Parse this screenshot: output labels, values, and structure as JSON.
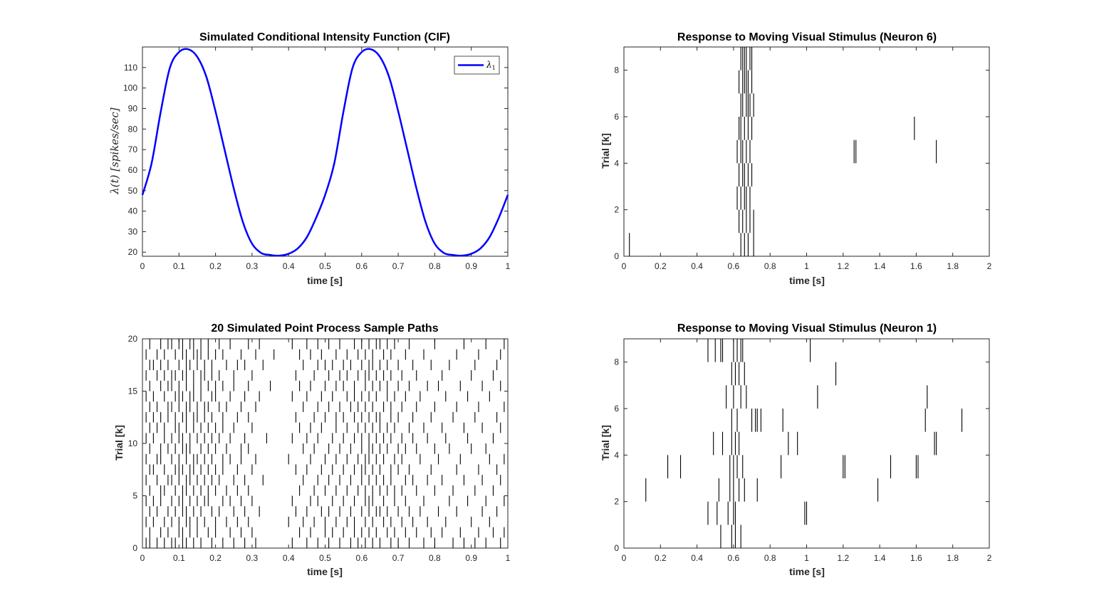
{
  "figure": {
    "axis_color": "#262626",
    "spike_color": "#000000",
    "cif_color": "#0000ff"
  },
  "chart_data": [
    {
      "id": "cif",
      "type": "line",
      "title": "Simulated Conditional Intensity Function (CIF)",
      "xlabel": "time [s]",
      "ylabel": "λ(t) [spikes/sec]",
      "xlim": [
        0,
        1
      ],
      "ylim": [
        18,
        120
      ],
      "xticks": [
        0,
        0.1,
        0.2,
        0.3,
        0.4,
        0.5,
        0.6,
        0.7,
        0.8,
        0.9,
        1
      ],
      "yticks": [
        20,
        30,
        40,
        50,
        60,
        70,
        80,
        90,
        100,
        110
      ],
      "legend": {
        "location": "top-right",
        "entries": [
          "λ1"
        ],
        "symbol": "λ",
        "subscript": "1"
      },
      "series": [
        {
          "name": "λ1",
          "color": "#0000ff",
          "x": [
            0,
            0.025,
            0.05,
            0.075,
            0.1,
            0.125,
            0.15,
            0.175,
            0.2,
            0.225,
            0.25,
            0.275,
            0.3,
            0.325,
            0.35,
            0.375,
            0.4,
            0.425,
            0.45,
            0.475,
            0.5,
            0.525,
            0.55,
            0.575,
            0.6,
            0.625,
            0.65,
            0.675,
            0.7,
            0.725,
            0.75,
            0.775,
            0.8,
            0.825,
            0.85,
            0.875,
            0.9,
            0.925,
            0.95,
            0.975,
            1
          ],
          "y": [
            47.9,
            63.3,
            88.4,
            109.8,
            117.5,
            118.9,
            115.2,
            105.4,
            88.6,
            69.8,
            51.0,
            34.6,
            24.1,
            19.6,
            18.6,
            18.3,
            19.2,
            21.8,
            27.3,
            36.6,
            47.9,
            63.3,
            88.4,
            109.8,
            117.5,
            118.9,
            115.2,
            105.4,
            88.6,
            69.8,
            51.0,
            34.6,
            24.1,
            19.6,
            18.6,
            18.3,
            19.2,
            21.8,
            27.3,
            36.6,
            47.9
          ]
        }
      ]
    },
    {
      "id": "raster20",
      "type": "scatter",
      "title": "20 Simulated Point Process Sample Paths",
      "xlabel": "time [s]",
      "ylabel": "Trial [k]",
      "xlim": [
        0,
        1
      ],
      "ylim": [
        0,
        20
      ],
      "xticks": [
        0,
        0.1,
        0.2,
        0.3,
        0.4,
        0.5,
        0.6,
        0.7,
        0.8,
        0.9,
        1
      ],
      "yticks": [
        0,
        5,
        10,
        15,
        20
      ],
      "trials": [
        [
          0.01,
          0.02,
          0.04,
          0.06,
          0.08,
          0.09,
          0.11,
          0.12,
          0.14,
          0.16,
          0.19,
          0.22,
          0.25,
          0.28,
          0.31,
          0.41,
          0.45,
          0.48,
          0.51,
          0.54,
          0.57,
          0.59,
          0.61,
          0.63,
          0.65,
          0.68,
          0.7,
          0.73,
          0.77,
          0.8,
          0.85,
          0.88,
          0.91,
          0.94,
          0.98
        ],
        [
          0.02,
          0.05,
          0.07,
          0.1,
          0.11,
          0.13,
          0.15,
          0.18,
          0.2,
          0.24,
          0.27,
          0.3,
          0.43,
          0.46,
          0.5,
          0.52,
          0.55,
          0.58,
          0.6,
          0.62,
          0.64,
          0.67,
          0.69,
          0.72,
          0.75,
          0.79,
          0.82,
          0.87,
          0.92,
          0.96,
          0.99
        ],
        [
          0.01,
          0.03,
          0.06,
          0.08,
          0.1,
          0.12,
          0.13,
          0.15,
          0.17,
          0.2,
          0.23,
          0.26,
          0.29,
          0.4,
          0.44,
          0.47,
          0.5,
          0.53,
          0.56,
          0.58,
          0.61,
          0.63,
          0.66,
          0.68,
          0.71,
          0.74,
          0.78,
          0.83,
          0.9,
          0.95
        ],
        [
          0.02,
          0.04,
          0.07,
          0.09,
          0.11,
          0.12,
          0.14,
          0.16,
          0.19,
          0.21,
          0.25,
          0.28,
          0.32,
          0.42,
          0.45,
          0.49,
          0.51,
          0.54,
          0.57,
          0.6,
          0.62,
          0.64,
          0.65,
          0.67,
          0.7,
          0.73,
          0.76,
          0.81,
          0.86,
          0.93,
          0.97
        ],
        [
          0.01,
          0.03,
          0.05,
          0.08,
          0.1,
          0.11,
          0.13,
          0.15,
          0.17,
          0.18,
          0.22,
          0.24,
          0.27,
          0.3,
          0.41,
          0.46,
          0.48,
          0.52,
          0.55,
          0.58,
          0.61,
          0.62,
          0.63,
          0.66,
          0.69,
          0.72,
          0.77,
          0.84,
          0.89,
          0.94,
          0.99
        ],
        [
          0.02,
          0.05,
          0.06,
          0.09,
          0.11,
          0.12,
          0.14,
          0.16,
          0.18,
          0.2,
          0.23,
          0.26,
          0.29,
          0.43,
          0.47,
          0.5,
          0.53,
          0.56,
          0.59,
          0.61,
          0.63,
          0.65,
          0.67,
          0.69,
          0.71,
          0.75,
          0.8,
          0.85,
          0.91,
          0.96
        ],
        [
          0.01,
          0.04,
          0.07,
          0.08,
          0.1,
          0.12,
          0.13,
          0.15,
          0.17,
          0.19,
          0.21,
          0.25,
          0.28,
          0.33,
          0.44,
          0.48,
          0.51,
          0.54,
          0.57,
          0.6,
          0.62,
          0.64,
          0.66,
          0.68,
          0.72,
          0.74,
          0.78,
          0.82,
          0.88,
          0.93,
          0.98
        ],
        [
          0.02,
          0.03,
          0.06,
          0.09,
          0.1,
          0.11,
          0.13,
          0.14,
          0.16,
          0.18,
          0.2,
          0.22,
          0.26,
          0.3,
          0.42,
          0.45,
          0.49,
          0.52,
          0.55,
          0.58,
          0.6,
          0.61,
          0.63,
          0.65,
          0.68,
          0.7,
          0.73,
          0.79,
          0.86,
          0.92,
          0.97
        ],
        [
          0.01,
          0.04,
          0.05,
          0.08,
          0.1,
          0.12,
          0.14,
          0.15,
          0.17,
          0.19,
          0.22,
          0.24,
          0.27,
          0.31,
          0.4,
          0.46,
          0.5,
          0.53,
          0.56,
          0.59,
          0.61,
          0.62,
          0.64,
          0.66,
          0.69,
          0.71,
          0.76,
          0.81,
          0.87,
          0.95,
          0.99
        ],
        [
          0.02,
          0.05,
          0.07,
          0.09,
          0.11,
          0.12,
          0.13,
          0.16,
          0.18,
          0.2,
          0.23,
          0.27,
          0.29,
          0.44,
          0.47,
          0.51,
          0.54,
          0.57,
          0.6,
          0.62,
          0.63,
          0.65,
          0.67,
          0.7,
          0.72,
          0.75,
          0.8,
          0.84,
          0.9,
          0.94
        ],
        [
          0.01,
          0.03,
          0.06,
          0.08,
          0.1,
          0.11,
          0.13,
          0.15,
          0.17,
          0.19,
          0.21,
          0.24,
          0.28,
          0.34,
          0.41,
          0.45,
          0.48,
          0.52,
          0.55,
          0.58,
          0.6,
          0.62,
          0.64,
          0.66,
          0.68,
          0.71,
          0.74,
          0.78,
          0.83,
          0.89,
          0.96
        ],
        [
          0.02,
          0.04,
          0.06,
          0.09,
          0.1,
          0.12,
          0.14,
          0.16,
          0.18,
          0.2,
          0.22,
          0.25,
          0.3,
          0.43,
          0.46,
          0.49,
          0.53,
          0.56,
          0.59,
          0.61,
          0.63,
          0.65,
          0.67,
          0.69,
          0.73,
          0.77,
          0.82,
          0.88,
          0.93,
          0.98
        ],
        [
          0.01,
          0.03,
          0.05,
          0.07,
          0.09,
          0.11,
          0.12,
          0.14,
          0.15,
          0.17,
          0.19,
          0.22,
          0.26,
          0.29,
          0.42,
          0.47,
          0.5,
          0.53,
          0.55,
          0.58,
          0.6,
          0.62,
          0.64,
          0.65,
          0.68,
          0.7,
          0.74,
          0.79,
          0.85,
          0.91,
          0.97
        ],
        [
          0.02,
          0.04,
          0.07,
          0.08,
          0.1,
          0.12,
          0.13,
          0.15,
          0.17,
          0.18,
          0.21,
          0.23,
          0.27,
          0.31,
          0.44,
          0.48,
          0.51,
          0.54,
          0.57,
          0.59,
          0.61,
          0.63,
          0.66,
          0.68,
          0.71,
          0.75,
          0.8,
          0.86,
          0.92,
          0.99
        ],
        [
          0.01,
          0.03,
          0.06,
          0.09,
          0.1,
          0.11,
          0.13,
          0.14,
          0.16,
          0.19,
          0.2,
          0.24,
          0.28,
          0.32,
          0.41,
          0.45,
          0.49,
          0.52,
          0.56,
          0.58,
          0.6,
          0.62,
          0.64,
          0.67,
          0.69,
          0.72,
          0.76,
          0.83,
          0.89,
          0.95
        ],
        [
          0.02,
          0.05,
          0.07,
          0.08,
          0.1,
          0.12,
          0.14,
          0.16,
          0.18,
          0.2,
          0.22,
          0.25,
          0.29,
          0.35,
          0.43,
          0.46,
          0.5,
          0.53,
          0.55,
          0.58,
          0.61,
          0.63,
          0.65,
          0.67,
          0.7,
          0.73,
          0.78,
          0.81,
          0.87,
          0.93,
          0.98
        ],
        [
          0.01,
          0.04,
          0.06,
          0.08,
          0.09,
          0.11,
          0.12,
          0.14,
          0.16,
          0.17,
          0.19,
          0.21,
          0.25,
          0.3,
          0.42,
          0.47,
          0.51,
          0.54,
          0.56,
          0.59,
          0.61,
          0.62,
          0.64,
          0.66,
          0.68,
          0.71,
          0.75,
          0.82,
          0.9,
          0.96
        ],
        [
          0.02,
          0.03,
          0.05,
          0.07,
          0.1,
          0.12,
          0.13,
          0.15,
          0.17,
          0.19,
          0.23,
          0.26,
          0.28,
          0.33,
          0.44,
          0.48,
          0.5,
          0.52,
          0.55,
          0.57,
          0.6,
          0.62,
          0.63,
          0.65,
          0.67,
          0.7,
          0.74,
          0.79,
          0.84,
          0.91,
          0.97
        ],
        [
          0.01,
          0.04,
          0.06,
          0.09,
          0.11,
          0.12,
          0.14,
          0.15,
          0.16,
          0.18,
          0.2,
          0.22,
          0.27,
          0.31,
          0.36,
          0.43,
          0.46,
          0.49,
          0.53,
          0.56,
          0.59,
          0.61,
          0.63,
          0.66,
          0.68,
          0.72,
          0.77,
          0.86,
          0.92,
          0.98
        ],
        [
          0.02,
          0.05,
          0.07,
          0.08,
          0.1,
          0.11,
          0.13,
          0.14,
          0.16,
          0.18,
          0.21,
          0.24,
          0.29,
          0.32,
          0.41,
          0.45,
          0.48,
          0.51,
          0.54,
          0.58,
          0.6,
          0.62,
          0.64,
          0.65,
          0.67,
          0.69,
          0.73,
          0.8,
          0.88,
          0.94,
          0.99
        ]
      ]
    },
    {
      "id": "neuron6",
      "type": "scatter",
      "title": "Response to Moving Visual Stimulus (Neuron 6)",
      "xlabel": "time [s]",
      "ylabel": "Trial [k]",
      "xlim": [
        0,
        2
      ],
      "ylim": [
        0,
        9
      ],
      "xticks": [
        0,
        0.2,
        0.4,
        0.6,
        0.8,
        1,
        1.2,
        1.4,
        1.6,
        1.8,
        2
      ],
      "yticks": [
        0,
        2,
        4,
        6,
        8
      ],
      "trials": [
        [
          0.03,
          0.64,
          0.66,
          0.68,
          0.71
        ],
        [
          0.63,
          0.65,
          0.67,
          0.69,
          0.71
        ],
        [
          0.62,
          0.64,
          0.66,
          0.67,
          0.69
        ],
        [
          0.63,
          0.65,
          0.66,
          0.68,
          0.7
        ],
        [
          0.62,
          0.64,
          0.65,
          0.67,
          0.69,
          1.26,
          1.27,
          1.71
        ],
        [
          0.63,
          0.64,
          0.66,
          0.68,
          0.7,
          1.59
        ],
        [
          0.64,
          0.65,
          0.67,
          0.68,
          0.69,
          0.71
        ],
        [
          0.63,
          0.65,
          0.66,
          0.67,
          0.68,
          0.7
        ],
        [
          0.64,
          0.65,
          0.66,
          0.67,
          0.69,
          0.7
        ]
      ]
    },
    {
      "id": "neuron1",
      "type": "scatter",
      "title": "Response to Moving Visual Stimulus (Neuron 1)",
      "xlabel": "time [s]",
      "ylabel": "Trial [k]",
      "xlim": [
        0,
        2
      ],
      "ylim": [
        0,
        9
      ],
      "xticks": [
        0,
        0.2,
        0.4,
        0.6,
        0.8,
        1,
        1.2,
        1.4,
        1.6,
        1.8,
        2
      ],
      "yticks": [
        0,
        2,
        4,
        6,
        8
      ],
      "trials": [
        [
          0.53,
          0.59,
          0.61,
          0.64
        ],
        [
          0.46,
          0.51,
          0.57,
          0.6,
          0.61,
          0.99,
          1.0
        ],
        [
          0.12,
          0.52,
          0.58,
          0.6,
          0.63,
          0.66,
          0.73,
          1.39
        ],
        [
          0.24,
          0.31,
          0.58,
          0.6,
          0.62,
          0.65,
          0.86,
          1.2,
          1.21,
          1.46,
          1.6,
          1.61
        ],
        [
          0.49,
          0.54,
          0.59,
          0.61,
          0.63,
          0.9,
          0.95,
          1.7,
          1.71
        ],
        [
          0.59,
          0.62,
          0.7,
          0.72,
          0.73,
          0.75,
          0.87,
          1.65,
          1.85
        ],
        [
          0.56,
          0.6,
          0.64,
          0.67,
          1.06,
          1.66
        ],
        [
          0.59,
          0.61,
          0.63,
          0.66,
          1.16
        ],
        [
          0.46,
          0.5,
          0.53,
          0.54,
          0.6,
          0.62,
          0.64,
          0.65,
          1.02
        ]
      ]
    }
  ]
}
